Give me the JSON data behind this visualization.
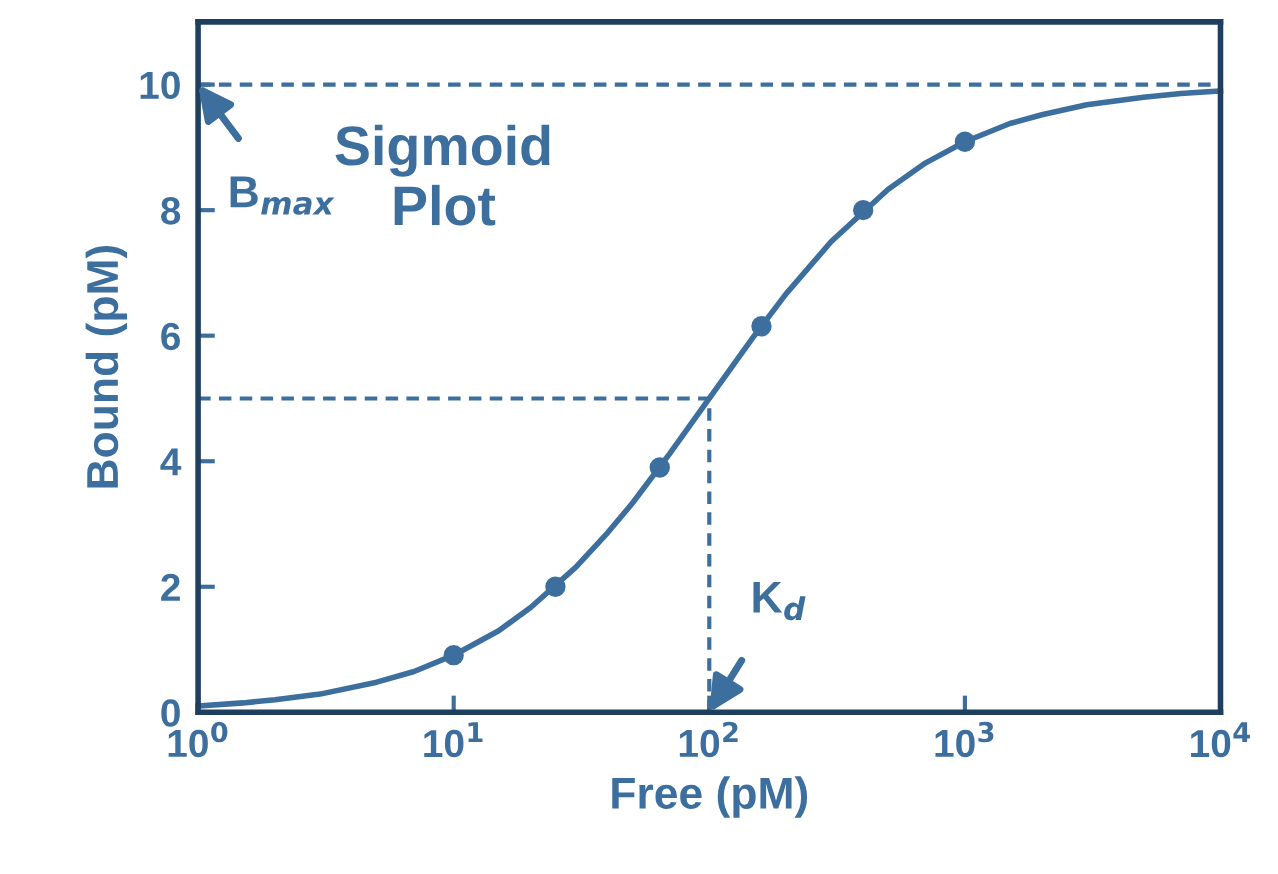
{
  "chart_data": {
    "type": "line",
    "xlabel": "Free (pM)",
    "ylabel": "Bound (pM)",
    "log": "x",
    "xlim": [
      1,
      10000
    ],
    "ylim": [
      0,
      11
    ],
    "xticks": [
      {
        "value": 1,
        "label": "10$^{0}$"
      },
      {
        "value": 10,
        "label": "10$^{1}$"
      },
      {
        "value": 100,
        "label": "10$^{2}$"
      },
      {
        "value": 1000,
        "label": "10$^{3}$"
      },
      {
        "value": 10000,
        "label": "10$^{4}$"
      }
    ],
    "yticks": [
      0,
      2,
      4,
      6,
      8,
      10
    ],
    "grid": false,
    "legend": false,
    "series": [
      {
        "color": "#3d6f9e",
        "marker": "none",
        "line_style": "solid",
        "x": [
          1,
          1.5,
          2,
          3,
          5,
          7,
          10,
          15,
          20,
          30,
          40,
          50,
          70,
          100,
          150,
          200,
          300,
          500,
          700,
          1000,
          1500,
          2000,
          3000,
          5000,
          7000,
          10000
        ],
        "values": [
          0.1,
          0.15,
          0.2,
          0.29,
          0.48,
          0.65,
          0.91,
          1.3,
          1.67,
          2.31,
          2.86,
          3.33,
          4.12,
          5.0,
          6.0,
          6.67,
          7.5,
          8.33,
          8.75,
          9.09,
          9.38,
          9.52,
          9.68,
          9.8,
          9.86,
          9.9
        ]
      },
      {
        "type": "scatter",
        "color": "#3d6f9e",
        "marker": "circle",
        "x": [
          10,
          25,
          64,
          160,
          400,
          1000
        ],
        "values": [
          0.91,
          2.0,
          3.9,
          6.15,
          8.0,
          9.09
        ]
      }
    ],
    "ref_lines": [
      {
        "axis": "y",
        "value": 10,
        "color": "#3d6f9e",
        "line_style": "dashed"
      },
      {
        "axis": "y",
        "value": 5,
        "color": "#3d6f9e",
        "line_style": "dashed"
      },
      {
        "axis": "x",
        "value": 100,
        "color": "#3d6f9e",
        "line_style": "dashed"
      }
    ],
    "annotations": [
      {
        "text": "B$_{max}$",
        "x": 1,
        "y": 10
      },
      {
        "text": "K$_{d}$",
        "x": 100,
        "y": 0
      },
      "Sigmoid\nPlot"
    ]
  }
}
